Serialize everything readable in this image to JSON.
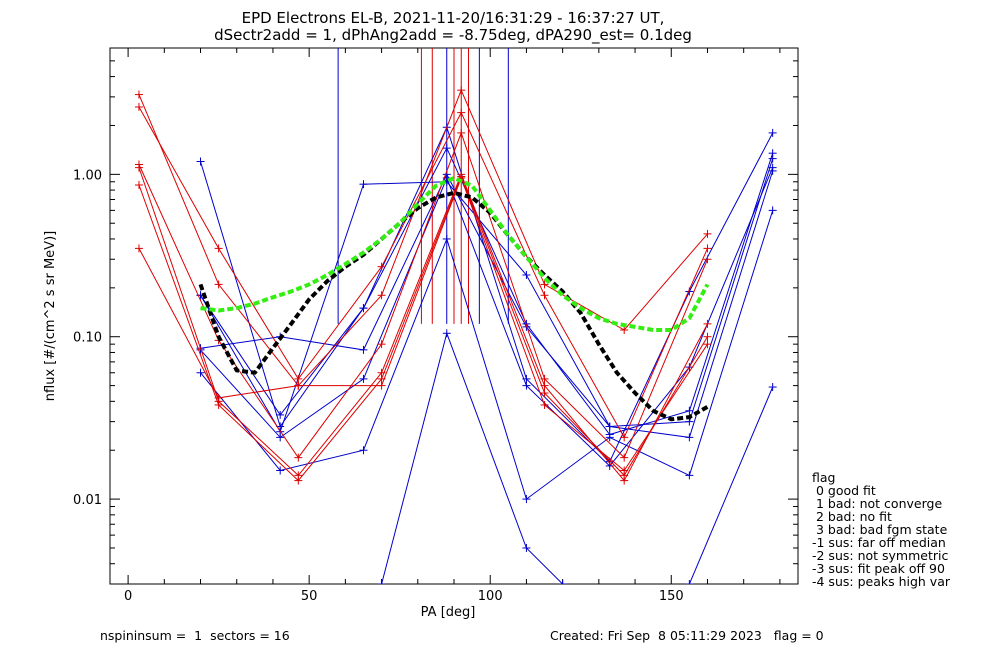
{
  "title_line1": "EPD Electrons EL-B, 2021-11-20/16:31:29 - 16:37:27 UT,",
  "title_line2": "dSectr2add = 1, dPhAng2add = -8.75deg, dPA290_est=   0.1deg",
  "footer_left": "nspininsum =  1  sectors = 16",
  "footer_right": "Created: Fri Sep  8 05:11:29 2023   flag = 0",
  "legend": {
    "title": "flag",
    "items": [
      " 0 good fit",
      " 1 bad: not converge",
      " 2 bad: no fit",
      " 3 bad: bad fgm state",
      "-1 sus: far off median",
      "-2 sus: not symmetric",
      "-3 sus: fit peak off 90",
      "-4 sus: peaks high var"
    ]
  },
  "colors": {
    "blue": "#0000cc",
    "red": "#dd0000",
    "black": "#000000",
    "green": "#33ee11"
  },
  "chart_data": {
    "type": "line",
    "xlabel": "PA [deg]",
    "ylabel": "nflux [#/(cm^2 s sr MeV)]",
    "xlim": [
      -5,
      185
    ],
    "ylim": [
      0.003,
      6
    ],
    "ylog": true,
    "xticks": [
      0,
      50,
      100,
      150
    ],
    "xtick_labels": [
      "0",
      "50",
      "100",
      "150"
    ],
    "yticks": [
      0.01,
      0.1,
      1
    ],
    "ytick_labels": [
      "0.01",
      "0.10",
      "1.00"
    ],
    "series": [
      {
        "color": "blue",
        "x": [
          20,
          42,
          65,
          88,
          110,
          133,
          155,
          178
        ],
        "y": [
          1.2,
          0.028,
          0.15,
          1.95,
          0.055,
          0.017,
          0.19,
          1.8
        ]
      },
      {
        "color": "blue",
        "x": [
          20,
          42,
          65,
          88,
          110,
          133,
          155,
          178
        ],
        "y": [
          0.18,
          0.033,
          0.15,
          1.45,
          0.12,
          0.025,
          0.035,
          1.35
        ]
      },
      {
        "color": "blue",
        "x": [
          20,
          42,
          65,
          88,
          110,
          133,
          155,
          178
        ],
        "y": [
          0.085,
          0.1,
          0.083,
          1.0,
          0.115,
          0.028,
          0.03,
          1.25
        ]
      },
      {
        "color": "blue",
        "x": [
          20,
          42,
          65,
          88,
          110,
          133,
          155,
          178
        ],
        "y": [
          0.06,
          0.015,
          0.02,
          0.4,
          0.01,
          0.024,
          0.014,
          0.6
        ]
      },
      {
        "color": "blue",
        "x": [
          20,
          42,
          65,
          88,
          110,
          133,
          155,
          178
        ],
        "y": [
          0.083,
          0.024,
          0.055,
          0.95,
          0.05,
          0.016,
          0.065,
          1.1
        ]
      },
      {
        "color": "blue",
        "x": [
          20,
          42,
          65,
          88,
          110,
          133,
          155,
          178
        ],
        "y": [
          0.18,
          0.026,
          0.87,
          0.9,
          0.24,
          0.028,
          0.024,
          1.05
        ]
      },
      {
        "color": "blue",
        "x": [
          70,
          88,
          110,
          120
        ],
        "y": [
          0.003,
          0.105,
          0.005,
          0.003
        ]
      },
      {
        "color": "blue",
        "x": [
          155,
          178
        ],
        "y": [
          0.003,
          0.049
        ]
      },
      {
        "color": "red",
        "x": [
          3,
          25,
          47,
          70,
          92,
          115,
          137,
          160
        ],
        "y": [
          3.1,
          0.21,
          0.05,
          0.18,
          3.3,
          0.21,
          0.11,
          0.43
        ]
      },
      {
        "color": "red",
        "x": [
          3,
          25,
          47,
          70,
          92,
          115,
          137,
          160
        ],
        "y": [
          2.6,
          0.35,
          0.055,
          0.27,
          2.4,
          0.18,
          0.024,
          0.35
        ]
      },
      {
        "color": "red",
        "x": [
          3,
          25,
          47,
          70,
          92,
          115,
          137,
          160
        ],
        "y": [
          1.15,
          0.095,
          0.018,
          0.09,
          1.8,
          0.055,
          0.018,
          0.3
        ]
      },
      {
        "color": "red",
        "x": [
          3,
          25,
          47,
          70,
          92,
          115,
          137,
          160
        ],
        "y": [
          1.1,
          0.04,
          0.014,
          0.06,
          1.0,
          0.05,
          0.013,
          0.12
        ]
      },
      {
        "color": "red",
        "x": [
          3,
          25,
          47,
          70,
          92,
          115,
          137,
          160
        ],
        "y": [
          0.86,
          0.038,
          0.013,
          0.055,
          0.97,
          0.045,
          0.014,
          0.1
        ]
      },
      {
        "color": "red",
        "x": [
          3,
          25,
          47,
          70,
          92,
          115,
          137,
          160
        ],
        "y": [
          0.35,
          0.042,
          0.05,
          0.05,
          0.95,
          0.038,
          0.015,
          0.09
        ]
      }
    ],
    "vertical_lines": [
      {
        "color": "blue",
        "x": 58,
        "y": [
          0.12,
          6
        ]
      },
      {
        "color": "blue",
        "x": 88,
        "y": [
          0.12,
          6
        ]
      },
      {
        "color": "blue",
        "x": 97,
        "y": [
          0.12,
          6
        ]
      },
      {
        "color": "blue",
        "x": 105,
        "y": [
          0.12,
          6
        ]
      },
      {
        "color": "red",
        "x": 81,
        "y": [
          0.12,
          6
        ]
      },
      {
        "color": "red",
        "x": 84,
        "y": [
          0.12,
          6
        ]
      },
      {
        "color": "red",
        "x": 90,
        "y": [
          0.12,
          6
        ]
      },
      {
        "color": "red",
        "x": 92,
        "y": [
          0.12,
          6
        ]
      },
      {
        "color": "red",
        "x": 94,
        "y": [
          0.12,
          6
        ]
      }
    ],
    "fits": [
      {
        "color": "black",
        "x": [
          20,
          25,
          30,
          35,
          40,
          45,
          50,
          55,
          60,
          65,
          70,
          75,
          80,
          85,
          90,
          95,
          100,
          105,
          110,
          115,
          120,
          125,
          130,
          135,
          140,
          145,
          150,
          155,
          160
        ],
        "y": [
          0.21,
          0.1,
          0.062,
          0.06,
          0.085,
          0.12,
          0.17,
          0.22,
          0.27,
          0.32,
          0.4,
          0.5,
          0.62,
          0.72,
          0.77,
          0.72,
          0.58,
          0.42,
          0.31,
          0.24,
          0.19,
          0.14,
          0.09,
          0.06,
          0.045,
          0.035,
          0.031,
          0.032,
          0.037
        ]
      },
      {
        "color": "green",
        "x": [
          20,
          25,
          30,
          35,
          40,
          45,
          50,
          55,
          60,
          65,
          70,
          75,
          80,
          85,
          90,
          95,
          100,
          105,
          110,
          115,
          120,
          125,
          130,
          135,
          140,
          145,
          150,
          155,
          160
        ],
        "y": [
          0.15,
          0.145,
          0.15,
          0.16,
          0.175,
          0.19,
          0.21,
          0.24,
          0.28,
          0.33,
          0.4,
          0.5,
          0.66,
          0.85,
          0.95,
          0.85,
          0.6,
          0.42,
          0.31,
          0.23,
          0.18,
          0.15,
          0.13,
          0.12,
          0.115,
          0.11,
          0.11,
          0.13,
          0.21
        ]
      }
    ]
  }
}
